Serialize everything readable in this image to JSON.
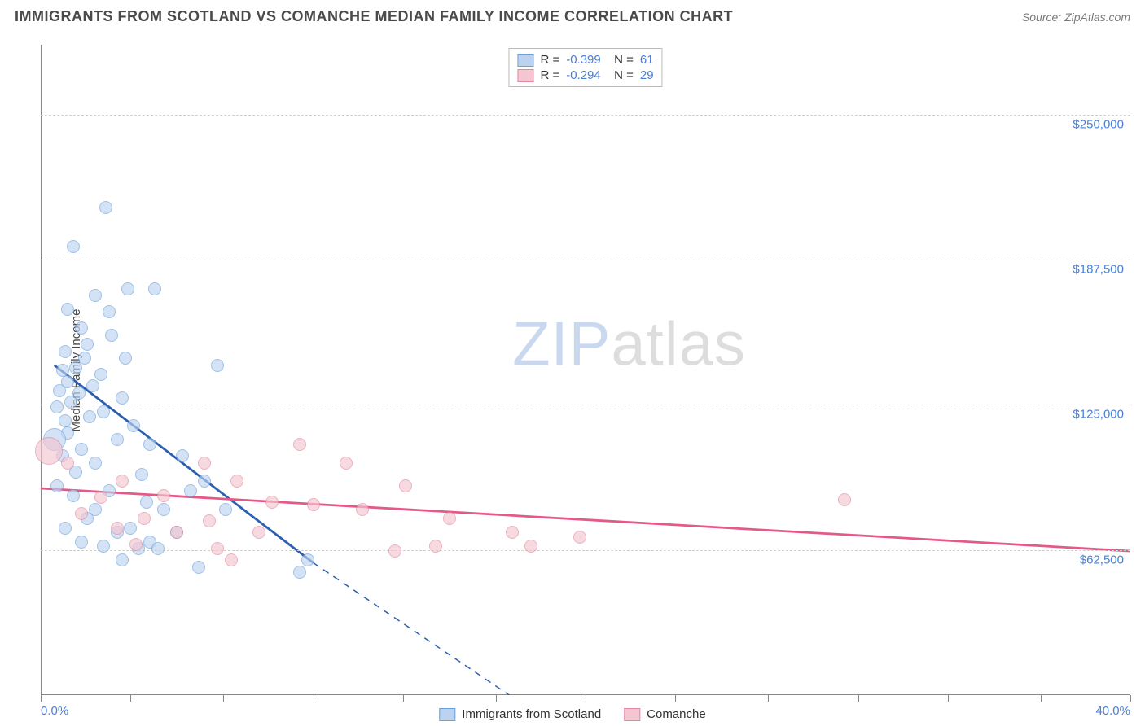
{
  "header": {
    "title": "IMMIGRANTS FROM SCOTLAND VS COMANCHE MEDIAN FAMILY INCOME CORRELATION CHART",
    "source_label": "Source: ",
    "source_name": "ZipAtlas.com"
  },
  "watermark": {
    "part1": "ZIP",
    "part2": "atlas"
  },
  "chart": {
    "type": "scatter",
    "ylabel": "Median Family Income",
    "xlim": [
      0,
      40
    ],
    "ylim": [
      0,
      280000
    ],
    "x_axis_label_left": "0.0%",
    "x_axis_label_right": "40.0%",
    "xtick_positions": [
      0,
      3.3,
      6.7,
      10,
      13.3,
      16.7,
      20,
      23.3,
      26.7,
      30,
      33.3,
      36.7,
      40
    ],
    "yticks": [
      {
        "v": 62500,
        "label": "$62,500"
      },
      {
        "v": 125000,
        "label": "$125,000"
      },
      {
        "v": 187500,
        "label": "$187,500"
      },
      {
        "v": 250000,
        "label": "$250,000"
      }
    ],
    "grid_dash_color": "#d0d0d0",
    "background_color": "#ffffff",
    "tick_label_color": "#4a7fd6",
    "series": [
      {
        "name": "Immigrants from Scotland",
        "fill": "#bcd3ef",
        "fill_opacity": 0.65,
        "stroke": "#6fa0da",
        "R": "-0.399",
        "N": "61",
        "trend": {
          "x1": 0.5,
          "y1": 142000,
          "x2": 10,
          "y2": 57000,
          "dash_x2": 17.2,
          "dash_y2": 0,
          "color": "#2c5fb0",
          "width": 2.8
        },
        "points": [
          {
            "x": 2.4,
            "y": 210000,
            "r": 8
          },
          {
            "x": 1.2,
            "y": 193000,
            "r": 8
          },
          {
            "x": 3.2,
            "y": 175000,
            "r": 8
          },
          {
            "x": 4.2,
            "y": 175000,
            "r": 8
          },
          {
            "x": 2.0,
            "y": 172000,
            "r": 8
          },
          {
            "x": 1.0,
            "y": 166000,
            "r": 8
          },
          {
            "x": 2.5,
            "y": 165000,
            "r": 8
          },
          {
            "x": 1.5,
            "y": 158000,
            "r": 8
          },
          {
            "x": 2.6,
            "y": 155000,
            "r": 8
          },
          {
            "x": 1.7,
            "y": 151000,
            "r": 8
          },
          {
            "x": 0.9,
            "y": 148000,
            "r": 8
          },
          {
            "x": 1.6,
            "y": 145000,
            "r": 8
          },
          {
            "x": 3.1,
            "y": 145000,
            "r": 8
          },
          {
            "x": 1.3,
            "y": 141000,
            "r": 8
          },
          {
            "x": 0.8,
            "y": 140000,
            "r": 8
          },
          {
            "x": 2.2,
            "y": 138000,
            "r": 8
          },
          {
            "x": 6.5,
            "y": 142000,
            "r": 8
          },
          {
            "x": 1.0,
            "y": 135000,
            "r": 8
          },
          {
            "x": 1.9,
            "y": 133000,
            "r": 8
          },
          {
            "x": 0.7,
            "y": 131000,
            "r": 8
          },
          {
            "x": 1.4,
            "y": 130000,
            "r": 8
          },
          {
            "x": 3.0,
            "y": 128000,
            "r": 8
          },
          {
            "x": 1.1,
            "y": 126000,
            "r": 8
          },
          {
            "x": 0.6,
            "y": 124000,
            "r": 8
          },
          {
            "x": 2.3,
            "y": 122000,
            "r": 8
          },
          {
            "x": 1.8,
            "y": 120000,
            "r": 8
          },
          {
            "x": 0.9,
            "y": 118000,
            "r": 8
          },
          {
            "x": 3.4,
            "y": 116000,
            "r": 8
          },
          {
            "x": 1.0,
            "y": 113000,
            "r": 8
          },
          {
            "x": 0.5,
            "y": 110000,
            "r": 14
          },
          {
            "x": 2.8,
            "y": 110000,
            "r": 8
          },
          {
            "x": 1.5,
            "y": 106000,
            "r": 8
          },
          {
            "x": 4.0,
            "y": 108000,
            "r": 8
          },
          {
            "x": 0.8,
            "y": 103000,
            "r": 8
          },
          {
            "x": 2.0,
            "y": 100000,
            "r": 8
          },
          {
            "x": 5.2,
            "y": 103000,
            "r": 8
          },
          {
            "x": 1.3,
            "y": 96000,
            "r": 8
          },
          {
            "x": 3.7,
            "y": 95000,
            "r": 8
          },
          {
            "x": 6.0,
            "y": 92000,
            "r": 8
          },
          {
            "x": 0.6,
            "y": 90000,
            "r": 8
          },
          {
            "x": 2.5,
            "y": 88000,
            "r": 8
          },
          {
            "x": 5.5,
            "y": 88000,
            "r": 8
          },
          {
            "x": 1.2,
            "y": 86000,
            "r": 8
          },
          {
            "x": 3.9,
            "y": 83000,
            "r": 8
          },
          {
            "x": 2.0,
            "y": 80000,
            "r": 8
          },
          {
            "x": 4.5,
            "y": 80000,
            "r": 8
          },
          {
            "x": 6.8,
            "y": 80000,
            "r": 8
          },
          {
            "x": 1.7,
            "y": 76000,
            "r": 8
          },
          {
            "x": 3.3,
            "y": 72000,
            "r": 8
          },
          {
            "x": 0.9,
            "y": 72000,
            "r": 8
          },
          {
            "x": 2.8,
            "y": 70000,
            "r": 8
          },
          {
            "x": 5.0,
            "y": 70000,
            "r": 8
          },
          {
            "x": 4.0,
            "y": 66000,
            "r": 8
          },
          {
            "x": 1.5,
            "y": 66000,
            "r": 8
          },
          {
            "x": 2.3,
            "y": 64000,
            "r": 8
          },
          {
            "x": 3.6,
            "y": 63000,
            "r": 8
          },
          {
            "x": 4.3,
            "y": 63000,
            "r": 8
          },
          {
            "x": 9.8,
            "y": 58000,
            "r": 8
          },
          {
            "x": 3.0,
            "y": 58000,
            "r": 8
          },
          {
            "x": 9.5,
            "y": 53000,
            "r": 8
          },
          {
            "x": 5.8,
            "y": 55000,
            "r": 8
          }
        ]
      },
      {
        "name": "Comanche",
        "fill": "#f4c6d1",
        "fill_opacity": 0.65,
        "stroke": "#e189a4",
        "R": "-0.294",
        "N": "29",
        "trend": {
          "x1": 0,
          "y1": 89000,
          "x2": 40,
          "y2": 62000,
          "color": "#e35a88",
          "width": 2.8
        },
        "points": [
          {
            "x": 0.3,
            "y": 105000,
            "r": 17
          },
          {
            "x": 1.0,
            "y": 100000,
            "r": 8
          },
          {
            "x": 9.5,
            "y": 108000,
            "r": 8
          },
          {
            "x": 6.0,
            "y": 100000,
            "r": 8
          },
          {
            "x": 11.2,
            "y": 100000,
            "r": 8
          },
          {
            "x": 3.0,
            "y": 92000,
            "r": 8
          },
          {
            "x": 7.2,
            "y": 92000,
            "r": 8
          },
          {
            "x": 13.4,
            "y": 90000,
            "r": 8
          },
          {
            "x": 2.2,
            "y": 85000,
            "r": 8
          },
          {
            "x": 4.5,
            "y": 86000,
            "r": 8
          },
          {
            "x": 8.5,
            "y": 83000,
            "r": 8
          },
          {
            "x": 10.0,
            "y": 82000,
            "r": 8
          },
          {
            "x": 11.8,
            "y": 80000,
            "r": 8
          },
          {
            "x": 29.5,
            "y": 84000,
            "r": 8
          },
          {
            "x": 1.5,
            "y": 78000,
            "r": 8
          },
          {
            "x": 3.8,
            "y": 76000,
            "r": 8
          },
          {
            "x": 6.2,
            "y": 75000,
            "r": 8
          },
          {
            "x": 15.0,
            "y": 76000,
            "r": 8
          },
          {
            "x": 2.8,
            "y": 72000,
            "r": 8
          },
          {
            "x": 5.0,
            "y": 70000,
            "r": 8
          },
          {
            "x": 8.0,
            "y": 70000,
            "r": 8
          },
          {
            "x": 17.3,
            "y": 70000,
            "r": 8
          },
          {
            "x": 19.8,
            "y": 68000,
            "r": 8
          },
          {
            "x": 3.5,
            "y": 65000,
            "r": 8
          },
          {
            "x": 6.5,
            "y": 63000,
            "r": 8
          },
          {
            "x": 13.0,
            "y": 62000,
            "r": 8
          },
          {
            "x": 14.5,
            "y": 64000,
            "r": 8
          },
          {
            "x": 18.0,
            "y": 64000,
            "r": 8
          },
          {
            "x": 7.0,
            "y": 58000,
            "r": 8
          }
        ]
      }
    ],
    "bottom_legend": [
      {
        "label": "Immigrants from Scotland",
        "fill": "#bcd3ef",
        "stroke": "#6fa0da"
      },
      {
        "label": "Comanche",
        "fill": "#f4c6d1",
        "stroke": "#e189a4"
      }
    ]
  }
}
